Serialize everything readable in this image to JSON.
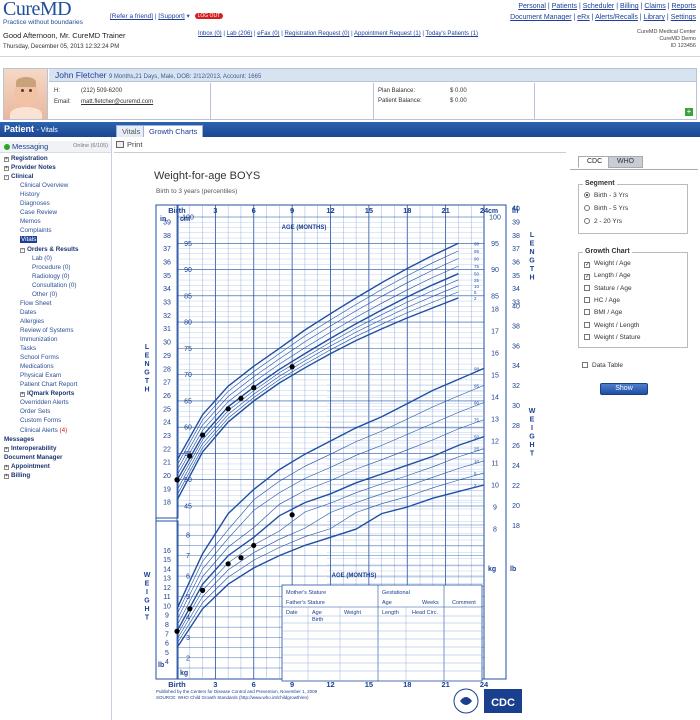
{
  "header": {
    "brand": "CureMD",
    "tagline": "Practice without boundaries",
    "refer_friend": "[Refer a friend]",
    "support": "[Support]",
    "logout": "LOG OUT",
    "greeting": "Good Afternoon, Mr. CureMD Trainer",
    "date": "Thursday, December 05, 2013  12:32:24 PM",
    "nav_row1": [
      "Personal",
      "Patients",
      "Scheduler",
      "Billing",
      "Claims",
      "Reports"
    ],
    "nav_row2": [
      "Document Manager",
      "eRx",
      "Alerts/Recalls",
      "Library",
      "Settings"
    ],
    "inbox_links": [
      "Inbox (0)",
      "Lab (206)",
      "eFax (0)",
      "Registration Request (0)",
      "Appointment Request (1)",
      "Today's Patients (1)"
    ],
    "center_lines": [
      "CureMD Medical Center",
      "CureMD Demo",
      "ID 123456"
    ]
  },
  "patient": {
    "name": "John Fletcher",
    "meta": "9 Months,21 Days, Male, DOB: 2/12/2013, Account: 1665",
    "phone_label": "H:",
    "phone": "(212) 509-6200",
    "email_label": "Email:",
    "email": "matt.fletcher@curemd.com",
    "plan_balance_label": "Plan Balance:",
    "plan_balance": "$ 0.00",
    "patient_balance_label": "Patient Balance:",
    "patient_balance": "$ 0.00"
  },
  "section": {
    "title": "Patient",
    "subtitle": "- Vitals",
    "tabs": [
      "Vitals",
      "Growth Charts"
    ],
    "active_tab": "Growth Charts"
  },
  "sidebar": {
    "messaging": "Messaging",
    "online": "Online (6/105)",
    "items": [
      {
        "label": "Registration",
        "level": 0,
        "bold": true,
        "toggle": "+"
      },
      {
        "label": "Provider Notes",
        "level": 0,
        "bold": true,
        "toggle": "+"
      },
      {
        "label": "Clinical",
        "level": 0,
        "bold": true,
        "toggle": "-"
      },
      {
        "label": "Clinical Overview",
        "level": 1
      },
      {
        "label": "History",
        "level": 1
      },
      {
        "label": "Diagnoses",
        "level": 1
      },
      {
        "label": "Case Review",
        "level": 1
      },
      {
        "label": "Memos",
        "level": 1
      },
      {
        "label": "Complaints",
        "level": 1
      },
      {
        "label": "Vitals",
        "level": 1,
        "selected": true
      },
      {
        "label": "Orders & Results",
        "level": 1,
        "bold": true,
        "toggle": "-"
      },
      {
        "label": "Lab (0)",
        "level": 2
      },
      {
        "label": "Procedure (0)",
        "level": 2
      },
      {
        "label": "Radiology (0)",
        "level": 2
      },
      {
        "label": "Consultation (0)",
        "level": 2
      },
      {
        "label": "Other (0)",
        "level": 2
      },
      {
        "label": "Flow Sheet",
        "level": 1
      },
      {
        "label": "Dates",
        "level": 1
      },
      {
        "label": "Allergies",
        "level": 1
      },
      {
        "label": "Review of Systems",
        "level": 1
      },
      {
        "label": "Immunization",
        "level": 1
      },
      {
        "label": "Tasks",
        "level": 1
      },
      {
        "label": "School Forms",
        "level": 1
      },
      {
        "label": "Medications",
        "level": 1
      },
      {
        "label": "Physical Exam",
        "level": 1
      },
      {
        "label": "Patient Chart Report",
        "level": 1
      },
      {
        "label": "IQmark Reports",
        "level": 1,
        "bold": true,
        "toggle": "+"
      },
      {
        "label": "Overridden Alerts",
        "level": 1
      },
      {
        "label": "Order Sets",
        "level": 1
      },
      {
        "label": "Custom Forms",
        "level": 1
      },
      {
        "label": "Clinical Alerts",
        "level": 1,
        "badge": "(4)"
      },
      {
        "label": "Messages",
        "level": 0,
        "bold": true
      },
      {
        "label": "Interoperability",
        "level": 0,
        "bold": true,
        "toggle": "+"
      },
      {
        "label": "Document Manager",
        "level": 0,
        "bold": true
      },
      {
        "label": "Appointment",
        "level": 0,
        "bold": true,
        "toggle": "+"
      },
      {
        "label": "Billing",
        "level": 0,
        "bold": true,
        "toggle": "+"
      }
    ]
  },
  "toolbar": {
    "print": "Print"
  },
  "chart": {
    "title": "Weight-for-age BOYS",
    "subtitle": "Birth to 3 years (percentiles)",
    "top_ticks": [
      "Birth",
      "3",
      "6",
      "9",
      "12",
      "15",
      "18",
      "21",
      "24"
    ],
    "bottom_ticks": [
      "Birth",
      "3",
      "6",
      "9",
      "12",
      "15",
      "18",
      "21",
      "24"
    ],
    "age_label": "AGE (MONTHS)",
    "unit_in": "in",
    "unit_cm": "cm",
    "unit_kg": "kg",
    "unit_lb": "lb",
    "length_label": "LENGTH",
    "weight_label": "WEIGHT",
    "top_right_in": "41",
    "length_cm_ticks": [
      "100",
      "95",
      "90",
      "85",
      "80",
      "75",
      "70",
      "65",
      "60",
      "55",
      "50",
      "45"
    ],
    "length_in_ticks": [
      "39",
      "38",
      "37",
      "36",
      "35",
      "34",
      "33",
      "32",
      "31",
      "30",
      "29",
      "28",
      "27",
      "26",
      "25",
      "24",
      "23",
      "22",
      "21",
      "20",
      "19",
      "18"
    ],
    "weight_lb_left": [
      "16",
      "15",
      "14",
      "13",
      "12",
      "11",
      "10",
      "9",
      "8",
      "7",
      "6",
      "5",
      "4"
    ],
    "weight_kg_left": [
      "8",
      "7",
      "6",
      "5",
      "4",
      "3",
      "2"
    ],
    "right_kg_ticks": [
      "18",
      "17",
      "16",
      "15",
      "14",
      "13",
      "12",
      "11",
      "10",
      "9",
      "8"
    ],
    "right_lb_ticks": [
      "40",
      "38",
      "36",
      "34",
      "32",
      "30",
      "28",
      "26",
      "24",
      "22",
      "20",
      "18"
    ],
    "right_cm_top": [
      "100",
      "95",
      "90",
      "85"
    ],
    "right_in_top": [
      "40",
      "39",
      "38",
      "37",
      "36",
      "35",
      "34",
      "33"
    ],
    "percentiles": [
      "98",
      "95",
      "90",
      "75",
      "50",
      "25",
      "10",
      "5",
      "2"
    ],
    "table_headers": {
      "mother": "Mother's Stature",
      "father": "Father's Stature",
      "gestational": "Gestational",
      "age": "Age",
      "weeks": "Weeks",
      "comment": "Comment",
      "date": "Date",
      "age_col": "Age",
      "weight": "Weight",
      "length": "Length",
      "head": "Head Circ.",
      "birth": "Birth"
    },
    "source_1": "Published by the Centers for Disease Control and Prevention, November 1, 2009",
    "source_2": "SOURCE: WHO Child Growth Standards (http://www.who.int/childgrowth/en)",
    "cdc_logo": "CDC",
    "length_points": [
      [
        0,
        50
      ],
      [
        1,
        54.5
      ],
      [
        2,
        58.5
      ],
      [
        4,
        63.5
      ],
      [
        5,
        65.5
      ],
      [
        6,
        67.5
      ],
      [
        9,
        71.5
      ]
    ],
    "weight_points": [
      [
        0,
        3.3
      ],
      [
        1,
        4.4
      ],
      [
        2,
        5.3
      ],
      [
        4,
        6.6
      ],
      [
        5,
        6.9
      ],
      [
        6,
        7.5
      ],
      [
        9,
        9.0
      ]
    ]
  },
  "right_panel": {
    "tabs": [
      "CDC",
      "WHO"
    ],
    "active_tab": "CDC",
    "segment_title": "Segment",
    "segments": [
      {
        "label": "Birth - 3 Yrs",
        "selected": true
      },
      {
        "label": "Birth - 5 Yrs",
        "selected": false
      },
      {
        "label": "2 - 20 Yrs",
        "selected": false
      }
    ],
    "growth_title": "Growth Chart",
    "growth_items": [
      {
        "label": "Weight / Age",
        "checked": true
      },
      {
        "label": "Length / Age",
        "checked": true
      },
      {
        "label": "Stature / Age",
        "checked": false
      },
      {
        "label": "HC / Age",
        "checked": false
      },
      {
        "label": "BMI / Age",
        "checked": false
      },
      {
        "label": "Weight / Length",
        "checked": false
      },
      {
        "label": "Weight / Stature",
        "checked": false
      }
    ],
    "data_table": "Data Table",
    "show": "Show"
  }
}
